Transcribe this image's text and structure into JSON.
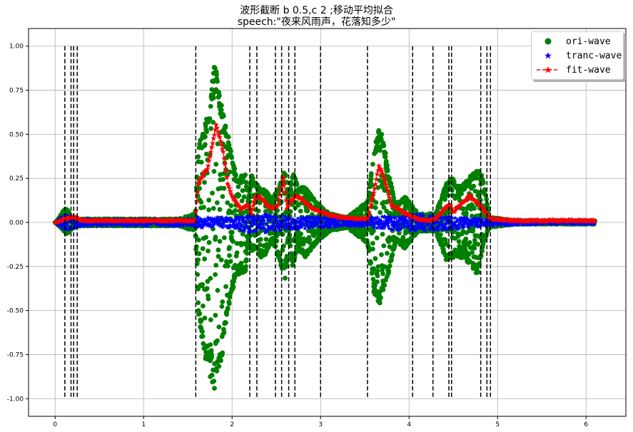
{
  "chart_data": {
    "type": "scatter",
    "title": "波形截断 b 0.5,c 2 ;移动平均拟合",
    "subtitle": "speech:\"夜来风雨声，花落知多少\"",
    "xlabel": "",
    "ylabel": "",
    "xlim": [
      -0.3,
      6.45
    ],
    "ylim": [
      -1.1,
      1.1
    ],
    "xticks": [
      0,
      1,
      2,
      3,
      4,
      5,
      6
    ],
    "xtick_labels": [
      "0",
      "1",
      "2",
      "3",
      "4",
      "5",
      "6"
    ],
    "yticks": [
      1.0,
      0.75,
      0.5,
      0.25,
      0.0,
      -0.25,
      -0.5,
      -0.75,
      -1.0
    ],
    "ytick_labels": [
      "1.00",
      "0.75",
      "0.50",
      "0.25",
      "0.00",
      "-0.25",
      "-0.50",
      "-0.75",
      "-1.00"
    ],
    "grid": true,
    "legend_position": "top-right",
    "x_range": [
      0,
      6.1
    ],
    "segment_boundaries": [
      0.11,
      0.18,
      0.21,
      0.25,
      1.59,
      2.2,
      2.28,
      2.49,
      2.56,
      2.64,
      2.71,
      3.0,
      3.53,
      4.04,
      4.27,
      4.45,
      4.48,
      4.81,
      4.88,
      4.92
    ],
    "series": [
      {
        "name": "ori-wave",
        "marker": "circle",
        "color": "#008000",
        "x": [
          0.0,
          0.1,
          0.13,
          0.16,
          0.2,
          0.3,
          0.6,
          1.0,
          1.4,
          1.58,
          1.62,
          1.68,
          1.75,
          1.8,
          1.84,
          1.88,
          1.95,
          2.05,
          2.15,
          2.18,
          2.22,
          2.26,
          2.32,
          2.38,
          2.45,
          2.52,
          2.6,
          2.64,
          2.68,
          2.74,
          2.82,
          2.9,
          2.98,
          3.1,
          3.3,
          3.53,
          3.6,
          3.66,
          3.7,
          3.76,
          3.85,
          3.95,
          4.1,
          4.3,
          4.42,
          4.48,
          4.55,
          4.62,
          4.7,
          4.78,
          4.84,
          4.9,
          5.2,
          5.6,
          6.1
        ],
        "y_upper": [
          0.0,
          0.07,
          0.08,
          0.05,
          0.03,
          0.02,
          0.02,
          0.02,
          0.02,
          0.05,
          0.45,
          0.52,
          0.7,
          0.93,
          0.82,
          0.67,
          0.5,
          0.25,
          0.28,
          0.13,
          0.27,
          0.23,
          0.2,
          0.18,
          0.13,
          0.2,
          0.3,
          0.12,
          0.3,
          0.2,
          0.2,
          0.15,
          0.1,
          0.05,
          0.03,
          0.12,
          0.4,
          0.55,
          0.5,
          0.3,
          0.1,
          0.15,
          0.05,
          0.05,
          0.22,
          0.26,
          0.2,
          0.22,
          0.27,
          0.3,
          0.25,
          0.03,
          0.01,
          0.01,
          0.01
        ],
        "y_lower": [
          0.0,
          -0.05,
          -0.07,
          -0.05,
          -0.03,
          -0.02,
          -0.02,
          -0.02,
          -0.02,
          -0.05,
          -0.55,
          -0.75,
          -0.88,
          -1.0,
          -0.9,
          -0.78,
          -0.5,
          -0.3,
          -0.28,
          -0.1,
          -0.17,
          -0.15,
          -0.2,
          -0.18,
          -0.1,
          -0.2,
          -0.32,
          -0.05,
          -0.25,
          -0.15,
          -0.2,
          -0.15,
          -0.1,
          -0.05,
          -0.03,
          -0.12,
          -0.4,
          -0.47,
          -0.4,
          -0.3,
          -0.1,
          -0.15,
          -0.05,
          -0.05,
          -0.22,
          -0.2,
          -0.2,
          -0.2,
          -0.25,
          -0.3,
          -0.12,
          -0.03,
          -0.01,
          -0.01,
          -0.01
        ]
      },
      {
        "name": "tranc-wave",
        "marker": "star",
        "color": "#0000ff",
        "x": [
          0.0,
          0.1,
          0.3,
          0.6,
          1.0,
          1.5,
          1.6,
          2.0,
          2.2,
          2.35,
          2.5,
          2.7,
          3.0,
          3.5,
          3.6,
          4.0,
          4.3,
          4.5,
          4.9,
          5.5,
          6.1
        ],
        "y_upper": [
          0.0,
          0.05,
          0.02,
          0.02,
          0.02,
          0.02,
          0.03,
          0.03,
          0.04,
          0.05,
          0.04,
          0.03,
          0.03,
          0.02,
          0.03,
          0.05,
          0.05,
          0.03,
          0.02,
          0.01,
          0.01
        ],
        "y_lower": [
          0.0,
          -0.05,
          -0.02,
          -0.02,
          -0.02,
          -0.02,
          -0.03,
          -0.03,
          -0.06,
          -0.06,
          -0.05,
          -0.04,
          -0.03,
          -0.02,
          -0.03,
          -0.05,
          -0.05,
          -0.04,
          -0.02,
          -0.01,
          -0.01
        ]
      },
      {
        "name": "fit-wave",
        "marker": "star-dashed",
        "color": "#ff0000",
        "x": [
          0.0,
          0.1,
          0.2,
          0.3,
          0.6,
          1.0,
          1.4,
          1.58,
          1.62,
          1.68,
          1.72,
          1.78,
          1.82,
          1.86,
          1.9,
          1.95,
          2.0,
          2.1,
          2.18,
          2.22,
          2.26,
          2.3,
          2.36,
          2.42,
          2.48,
          2.52,
          2.58,
          2.62,
          2.66,
          2.72,
          2.8,
          2.9,
          3.0,
          3.2,
          3.4,
          3.53,
          3.6,
          3.66,
          3.7,
          3.75,
          3.8,
          3.9,
          4.0,
          4.1,
          4.2,
          4.3,
          4.42,
          4.46,
          4.5,
          4.56,
          4.62,
          4.68,
          4.75,
          4.8,
          4.86,
          4.92,
          5.2,
          5.6,
          6.1
        ],
        "y": [
          0.0,
          0.02,
          0.03,
          0.01,
          0.01,
          0.01,
          0.01,
          0.01,
          0.22,
          0.28,
          0.3,
          0.45,
          0.55,
          0.48,
          0.4,
          0.22,
          0.15,
          0.08,
          0.1,
          0.05,
          0.14,
          0.15,
          0.12,
          0.09,
          0.08,
          0.1,
          0.26,
          0.08,
          0.12,
          0.15,
          0.13,
          0.08,
          0.06,
          0.03,
          0.02,
          0.02,
          0.17,
          0.32,
          0.28,
          0.2,
          0.1,
          0.07,
          0.04,
          0.02,
          0.01,
          0.02,
          0.09,
          0.1,
          0.06,
          0.09,
          0.12,
          0.15,
          0.12,
          0.1,
          0.06,
          0.02,
          0.01,
          0.01,
          0.01
        ]
      }
    ]
  }
}
